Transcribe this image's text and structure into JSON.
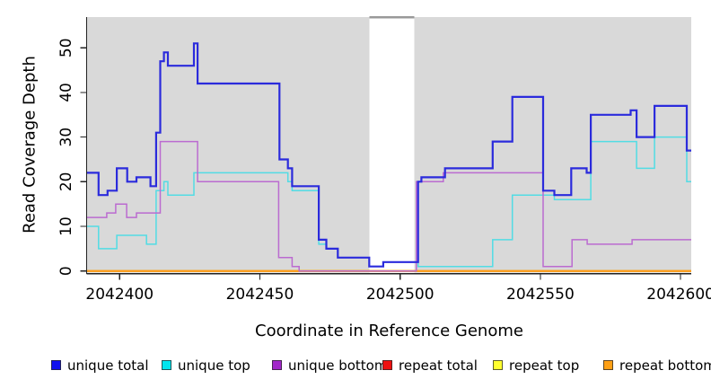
{
  "figure": {
    "y_axis_title": "Read Coverage Depth",
    "x_axis_title": "Coordinate in Reference Genome"
  },
  "legend": {
    "items": [
      {
        "label": "unique total",
        "color": "#1111EE"
      },
      {
        "label": "unique top",
        "color": "#00E5EE"
      },
      {
        "label": "unique bottom",
        "color": "#A227C9"
      },
      {
        "label": "repeat total",
        "color": "#EE1111"
      },
      {
        "label": "repeat top",
        "color": "#FFFF2E"
      },
      {
        "label": "repeat bottom",
        "color": "#FFA014"
      }
    ]
  },
  "chart_data": {
    "type": "line",
    "subtype": "step-coverage",
    "title": "",
    "xlabel": "Coordinate in Reference Genome",
    "ylabel": "Read Coverage Depth",
    "xlim": [
      2042388.4,
      2042603.8
    ],
    "ylim": [
      0,
      56.9
    ],
    "x_ticks": [
      2042400,
      2042450,
      2042500,
      2042550,
      2042600
    ],
    "y_ticks": [
      0,
      10,
      20,
      30,
      40,
      50
    ],
    "grid": false,
    "panel_background": "#D9D9D9",
    "masked_region": {
      "x0": 2042489,
      "x1": 2042505,
      "fill": "#FFFFFF",
      "top_edge_color": "#999999"
    },
    "legend_position": "bottom",
    "series": [
      {
        "name": "repeat total",
        "color": "#CC3344",
        "width": 2,
        "steps": [
          [
            2042388.4,
            0
          ]
        ]
      },
      {
        "name": "repeat top",
        "color": "#F2E918",
        "width": 2,
        "steps": [
          [
            2042388.4,
            0
          ]
        ]
      },
      {
        "name": "repeat bottom",
        "color": "#FF9C1A",
        "width": 2,
        "steps": [
          [
            2042388.4,
            0
          ]
        ]
      },
      {
        "name": "unique top",
        "color": "#52DCE4",
        "width": 1.5,
        "steps": [
          [
            2042388.4,
            10
          ],
          [
            2042392.5,
            5
          ],
          [
            2042399,
            8
          ],
          [
            2042409.6,
            6
          ],
          [
            2042413,
            18
          ],
          [
            2042415.8,
            20
          ],
          [
            2042417.2,
            17
          ],
          [
            2042426.5,
            22
          ],
          [
            2042460,
            20
          ],
          [
            2042461.5,
            18
          ],
          [
            2042471,
            6
          ],
          [
            2042473.7,
            5
          ],
          [
            2042477.8,
            3
          ],
          [
            2042489,
            1
          ],
          [
            2042494,
            2
          ],
          [
            2042506.4,
            1
          ],
          [
            2042533,
            7
          ],
          [
            2042540,
            17
          ],
          [
            2042555,
            16
          ],
          [
            2042568,
            29
          ],
          [
            2042584.3,
            23
          ],
          [
            2042590.7,
            30
          ],
          [
            2042602.2,
            20
          ]
        ]
      },
      {
        "name": "unique bottom",
        "color": "#BB6BD0",
        "width": 1.5,
        "steps": [
          [
            2042388.4,
            12
          ],
          [
            2042395.4,
            13
          ],
          [
            2042398.6,
            15
          ],
          [
            2042402.5,
            12
          ],
          [
            2042406,
            13
          ],
          [
            2042414.5,
            29
          ],
          [
            2042427.8,
            20
          ],
          [
            2042456.7,
            3
          ],
          [
            2042461.5,
            1
          ],
          [
            2042464,
            0
          ],
          [
            2042505.8,
            20
          ],
          [
            2042515.4,
            22
          ],
          [
            2042551,
            1
          ],
          [
            2042561.3,
            7
          ],
          [
            2042566.7,
            6
          ],
          [
            2042582.7,
            7
          ]
        ]
      },
      {
        "name": "unique total",
        "color": "#2B2BDC",
        "width": 2.2,
        "steps": [
          [
            2042388.4,
            22
          ],
          [
            2042392.5,
            17
          ],
          [
            2042395.7,
            18
          ],
          [
            2042399,
            23
          ],
          [
            2042402.7,
            20
          ],
          [
            2042406,
            21
          ],
          [
            2042411,
            19
          ],
          [
            2042413,
            31
          ],
          [
            2042414.5,
            47
          ],
          [
            2042415.8,
            49
          ],
          [
            2042417.2,
            46
          ],
          [
            2042426.5,
            51
          ],
          [
            2042427.8,
            42
          ],
          [
            2042457,
            25
          ],
          [
            2042460,
            23
          ],
          [
            2042461.5,
            19
          ],
          [
            2042471,
            7
          ],
          [
            2042473.7,
            5
          ],
          [
            2042477.8,
            3
          ],
          [
            2042489,
            1
          ],
          [
            2042494,
            2
          ],
          [
            2042506.4,
            20
          ],
          [
            2042507.6,
            21
          ],
          [
            2042516,
            23
          ],
          [
            2042533,
            29
          ],
          [
            2042540,
            39
          ],
          [
            2042551,
            18
          ],
          [
            2042555,
            17
          ],
          [
            2042561,
            23
          ],
          [
            2042566.5,
            22
          ],
          [
            2042568,
            35
          ],
          [
            2042582.2,
            36
          ],
          [
            2042584.3,
            30
          ],
          [
            2042590.7,
            37
          ],
          [
            2042602.2,
            27
          ]
        ]
      }
    ]
  }
}
